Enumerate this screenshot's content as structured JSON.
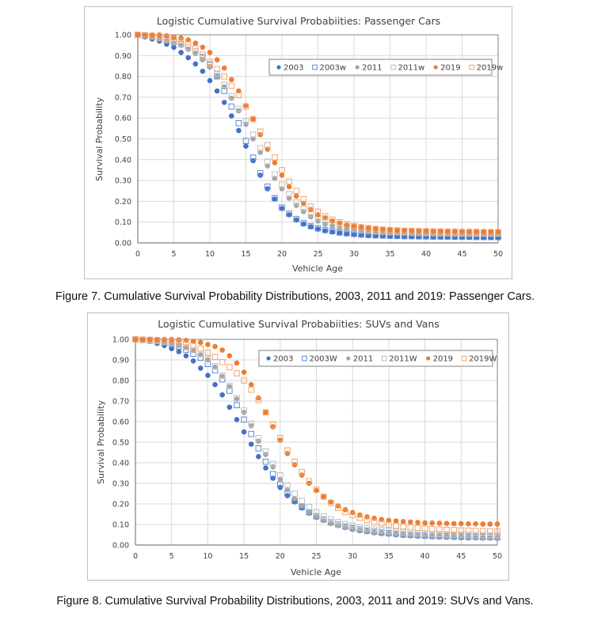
{
  "captions": {
    "figure7": "Figure 7. Cumulative Survival Probability Distributions, 2003, 2011 and 2019: Passenger Cars.",
    "figure8": "Figure 8. Cumulative Survival Probability Distributions, 2003, 2011 and 2019: SUVs and Vans."
  },
  "chart_data": [
    {
      "type": "scatter",
      "title": "Logistic Cumulative Survival Probabiities: Passenger Cars",
      "xlabel": "Vehicle Age",
      "ylabel": "Survival Probability",
      "xlim": [
        0,
        50
      ],
      "ylim": [
        0,
        1
      ],
      "xticks": [
        "0",
        "5",
        "10",
        "15",
        "20",
        "25",
        "30",
        "35",
        "40",
        "45",
        "50"
      ],
      "yticks": [
        "0.00",
        "0.10",
        "0.20",
        "0.30",
        "0.40",
        "0.50",
        "0.60",
        "0.70",
        "0.80",
        "0.90",
        "1.00"
      ],
      "grid": true,
      "legend_position": "top-right",
      "x": [
        0,
        1,
        2,
        3,
        4,
        5,
        6,
        7,
        8,
        9,
        10,
        11,
        12,
        13,
        14,
        15,
        16,
        17,
        18,
        19,
        20,
        21,
        22,
        23,
        24,
        25,
        26,
        27,
        28,
        29,
        30,
        31,
        32,
        33,
        34,
        35,
        36,
        37,
        38,
        39,
        40,
        41,
        42,
        43,
        44,
        45,
        46,
        47,
        48,
        49,
        50
      ],
      "series": [
        {
          "name": "2003",
          "marker": "circle",
          "color": "#4472c4",
          "values": [
            1.0,
            0.99,
            0.98,
            0.97,
            0.955,
            0.94,
            0.915,
            0.89,
            0.86,
            0.825,
            0.78,
            0.73,
            0.675,
            0.61,
            0.54,
            0.465,
            0.395,
            0.325,
            0.26,
            0.21,
            0.165,
            0.135,
            0.11,
            0.09,
            0.077,
            0.066,
            0.058,
            0.052,
            0.047,
            0.043,
            0.04,
            0.037,
            0.035,
            0.034,
            0.033,
            0.032,
            0.031,
            0.03,
            0.03,
            0.029,
            0.029,
            0.028,
            0.028,
            0.027,
            0.027,
            0.027,
            0.026,
            0.026,
            0.026,
            0.025,
            0.025
          ]
        },
        {
          "name": "2003w",
          "marker": "square",
          "color": "#4472c4",
          "values": [
            1.0,
            0.995,
            0.99,
            0.985,
            0.975,
            0.965,
            0.955,
            0.94,
            0.92,
            0.89,
            0.855,
            0.8,
            0.73,
            0.655,
            0.575,
            0.49,
            0.41,
            0.335,
            0.27,
            0.215,
            0.17,
            0.14,
            0.115,
            0.095,
            0.08,
            0.07,
            0.062,
            0.056,
            0.05,
            0.046,
            0.043,
            0.04,
            0.038,
            0.036,
            0.035,
            0.034,
            0.033,
            0.032,
            0.032,
            0.031,
            0.031,
            0.03,
            0.03,
            0.03,
            0.029,
            0.029,
            0.029,
            0.028,
            0.028,
            0.028,
            0.028
          ]
        },
        {
          "name": "2011",
          "marker": "circle",
          "color": "#a5a5a5",
          "values": [
            1.0,
            0.995,
            0.99,
            0.98,
            0.97,
            0.96,
            0.95,
            0.93,
            0.91,
            0.88,
            0.845,
            0.8,
            0.75,
            0.695,
            0.635,
            0.57,
            0.5,
            0.435,
            0.37,
            0.31,
            0.26,
            0.215,
            0.18,
            0.15,
            0.125,
            0.105,
            0.09,
            0.08,
            0.07,
            0.065,
            0.06,
            0.056,
            0.053,
            0.05,
            0.048,
            0.047,
            0.046,
            0.045,
            0.044,
            0.043,
            0.042,
            0.042,
            0.041,
            0.041,
            0.041,
            0.04,
            0.04,
            0.04,
            0.04,
            0.04,
            0.04
          ]
        },
        {
          "name": "2011w",
          "marker": "square",
          "color": "#a5a5a5",
          "values": [
            1.0,
            0.997,
            0.993,
            0.986,
            0.978,
            0.968,
            0.957,
            0.94,
            0.92,
            0.895,
            0.86,
            0.815,
            0.76,
            0.705,
            0.645,
            0.585,
            0.52,
            0.455,
            0.39,
            0.33,
            0.28,
            0.235,
            0.195,
            0.165,
            0.14,
            0.12,
            0.104,
            0.092,
            0.082,
            0.075,
            0.069,
            0.064,
            0.06,
            0.057,
            0.055,
            0.053,
            0.052,
            0.051,
            0.05,
            0.049,
            0.048,
            0.048,
            0.047,
            0.047,
            0.046,
            0.046,
            0.046,
            0.045,
            0.045,
            0.045,
            0.045
          ]
        },
        {
          "name": "2019",
          "marker": "circle",
          "color": "#ed7d31",
          "values": [
            1.0,
            1.0,
            1.0,
            1.0,
            0.995,
            0.99,
            0.985,
            0.975,
            0.96,
            0.94,
            0.915,
            0.88,
            0.84,
            0.785,
            0.73,
            0.66,
            0.595,
            0.52,
            0.45,
            0.385,
            0.325,
            0.27,
            0.225,
            0.19,
            0.16,
            0.135,
            0.12,
            0.105,
            0.095,
            0.085,
            0.08,
            0.075,
            0.071,
            0.068,
            0.066,
            0.064,
            0.062,
            0.061,
            0.06,
            0.059,
            0.059,
            0.058,
            0.058,
            0.057,
            0.057,
            0.056,
            0.056,
            0.056,
            0.055,
            0.055,
            0.055
          ]
        },
        {
          "name": "2019w",
          "marker": "square",
          "color": "#ed7d31",
          "values": [
            1.0,
            0.998,
            0.995,
            0.99,
            0.985,
            0.978,
            0.97,
            0.955,
            0.935,
            0.905,
            0.87,
            0.835,
            0.8,
            0.755,
            0.71,
            0.655,
            0.595,
            0.535,
            0.47,
            0.41,
            0.35,
            0.295,
            0.25,
            0.21,
            0.175,
            0.15,
            0.128,
            0.112,
            0.1,
            0.09,
            0.082,
            0.076,
            0.071,
            0.067,
            0.064,
            0.062,
            0.06,
            0.058,
            0.057,
            0.056,
            0.055,
            0.054,
            0.054,
            0.053,
            0.053,
            0.052,
            0.052,
            0.052,
            0.051,
            0.051,
            0.051
          ]
        }
      ]
    },
    {
      "type": "scatter",
      "title": "Logistic Cumulative Survival Probabiities: SUVs and Vans",
      "xlabel": "Vehicle Age",
      "ylabel": "Survival Probability",
      "xlim": [
        0,
        50
      ],
      "ylim": [
        0,
        1
      ],
      "xticks": [
        "0",
        "5",
        "10",
        "15",
        "20",
        "25",
        "30",
        "35",
        "40",
        "45",
        "50"
      ],
      "yticks": [
        "0.00",
        "0.10",
        "0.20",
        "0.30",
        "0.40",
        "0.50",
        "0.60",
        "0.70",
        "0.80",
        "0.90",
        "1.00"
      ],
      "grid": true,
      "legend_position": "top-right",
      "x": [
        0,
        1,
        2,
        3,
        4,
        5,
        6,
        7,
        8,
        9,
        10,
        11,
        12,
        13,
        14,
        15,
        16,
        17,
        18,
        19,
        20,
        21,
        22,
        23,
        24,
        25,
        26,
        27,
        28,
        29,
        30,
        31,
        32,
        33,
        34,
        35,
        36,
        37,
        38,
        39,
        40,
        41,
        42,
        43,
        44,
        45,
        46,
        47,
        48,
        49,
        50
      ],
      "series": [
        {
          "name": "2003",
          "marker": "circle",
          "color": "#4472c4",
          "values": [
            1.0,
            0.995,
            0.99,
            0.98,
            0.97,
            0.955,
            0.94,
            0.92,
            0.895,
            0.86,
            0.825,
            0.78,
            0.73,
            0.67,
            0.61,
            0.55,
            0.49,
            0.43,
            0.375,
            0.325,
            0.28,
            0.24,
            0.21,
            0.18,
            0.155,
            0.135,
            0.12,
            0.105,
            0.095,
            0.085,
            0.077,
            0.07,
            0.065,
            0.06,
            0.056,
            0.053,
            0.05,
            0.047,
            0.045,
            0.043,
            0.042,
            0.04,
            0.039,
            0.038,
            0.037,
            0.036,
            0.035,
            0.035,
            0.034,
            0.034,
            0.033
          ]
        },
        {
          "name": "2003W",
          "marker": "square",
          "color": "#4472c4",
          "values": [
            1.0,
            0.997,
            0.994,
            0.99,
            0.983,
            0.975,
            0.965,
            0.95,
            0.93,
            0.91,
            0.88,
            0.85,
            0.805,
            0.75,
            0.68,
            0.61,
            0.54,
            0.47,
            0.405,
            0.345,
            0.295,
            0.25,
            0.215,
            0.185,
            0.16,
            0.14,
            0.124,
            0.11,
            0.1,
            0.09,
            0.082,
            0.076,
            0.07,
            0.065,
            0.061,
            0.058,
            0.055,
            0.052,
            0.05,
            0.048,
            0.046,
            0.045,
            0.044,
            0.043,
            0.042,
            0.041,
            0.04,
            0.04,
            0.039,
            0.039,
            0.038
          ]
        },
        {
          "name": "2011",
          "marker": "circle",
          "color": "#a5a5a5",
          "values": [
            1.0,
            0.997,
            0.994,
            0.99,
            0.985,
            0.978,
            0.97,
            0.96,
            0.945,
            0.925,
            0.9,
            0.865,
            0.82,
            0.77,
            0.71,
            0.645,
            0.58,
            0.505,
            0.44,
            0.38,
            0.32,
            0.27,
            0.225,
            0.19,
            0.16,
            0.138,
            0.12,
            0.106,
            0.095,
            0.086,
            0.079,
            0.073,
            0.068,
            0.063,
            0.059,
            0.056,
            0.053,
            0.05,
            0.048,
            0.046,
            0.045,
            0.043,
            0.042,
            0.041,
            0.04,
            0.039,
            0.038,
            0.037,
            0.036,
            0.036,
            0.035
          ]
        },
        {
          "name": "2011W",
          "marker": "square",
          "color": "#a5a5a5",
          "values": [
            1.0,
            0.998,
            0.995,
            0.992,
            0.987,
            0.98,
            0.972,
            0.962,
            0.948,
            0.93,
            0.905,
            0.87,
            0.825,
            0.775,
            0.715,
            0.655,
            0.59,
            0.52,
            0.455,
            0.395,
            0.34,
            0.29,
            0.25,
            0.215,
            0.185,
            0.16,
            0.14,
            0.125,
            0.112,
            0.102,
            0.094,
            0.087,
            0.081,
            0.076,
            0.072,
            0.068,
            0.065,
            0.062,
            0.06,
            0.058,
            0.056,
            0.054,
            0.053,
            0.052,
            0.051,
            0.05,
            0.049,
            0.048,
            0.048,
            0.047,
            0.047
          ]
        },
        {
          "name": "2019",
          "marker": "circle",
          "color": "#ed7d31",
          "values": [
            1.0,
            1.0,
            1.0,
            1.0,
            1.0,
            1.0,
            0.998,
            0.995,
            0.99,
            0.985,
            0.975,
            0.965,
            0.948,
            0.92,
            0.885,
            0.84,
            0.78,
            0.715,
            0.645,
            0.575,
            0.51,
            0.445,
            0.39,
            0.34,
            0.3,
            0.265,
            0.235,
            0.21,
            0.19,
            0.172,
            0.158,
            0.146,
            0.137,
            0.13,
            0.124,
            0.12,
            0.117,
            0.114,
            0.112,
            0.11,
            0.108,
            0.107,
            0.106,
            0.105,
            0.104,
            0.104,
            0.103,
            0.103,
            0.102,
            0.102,
            0.102
          ]
        },
        {
          "name": "2019W",
          "marker": "square",
          "color": "#ed7d31",
          "values": [
            1.0,
            0.999,
            0.998,
            0.996,
            0.993,
            0.99,
            0.985,
            0.978,
            0.968,
            0.955,
            0.935,
            0.915,
            0.89,
            0.865,
            0.835,
            0.8,
            0.755,
            0.705,
            0.645,
            0.585,
            0.52,
            0.46,
            0.405,
            0.355,
            0.31,
            0.27,
            0.235,
            0.205,
            0.18,
            0.16,
            0.145,
            0.132,
            0.121,
            0.112,
            0.105,
            0.099,
            0.094,
            0.09,
            0.086,
            0.083,
            0.08,
            0.078,
            0.076,
            0.074,
            0.073,
            0.071,
            0.07,
            0.069,
            0.068,
            0.067,
            0.066
          ]
        }
      ]
    }
  ]
}
